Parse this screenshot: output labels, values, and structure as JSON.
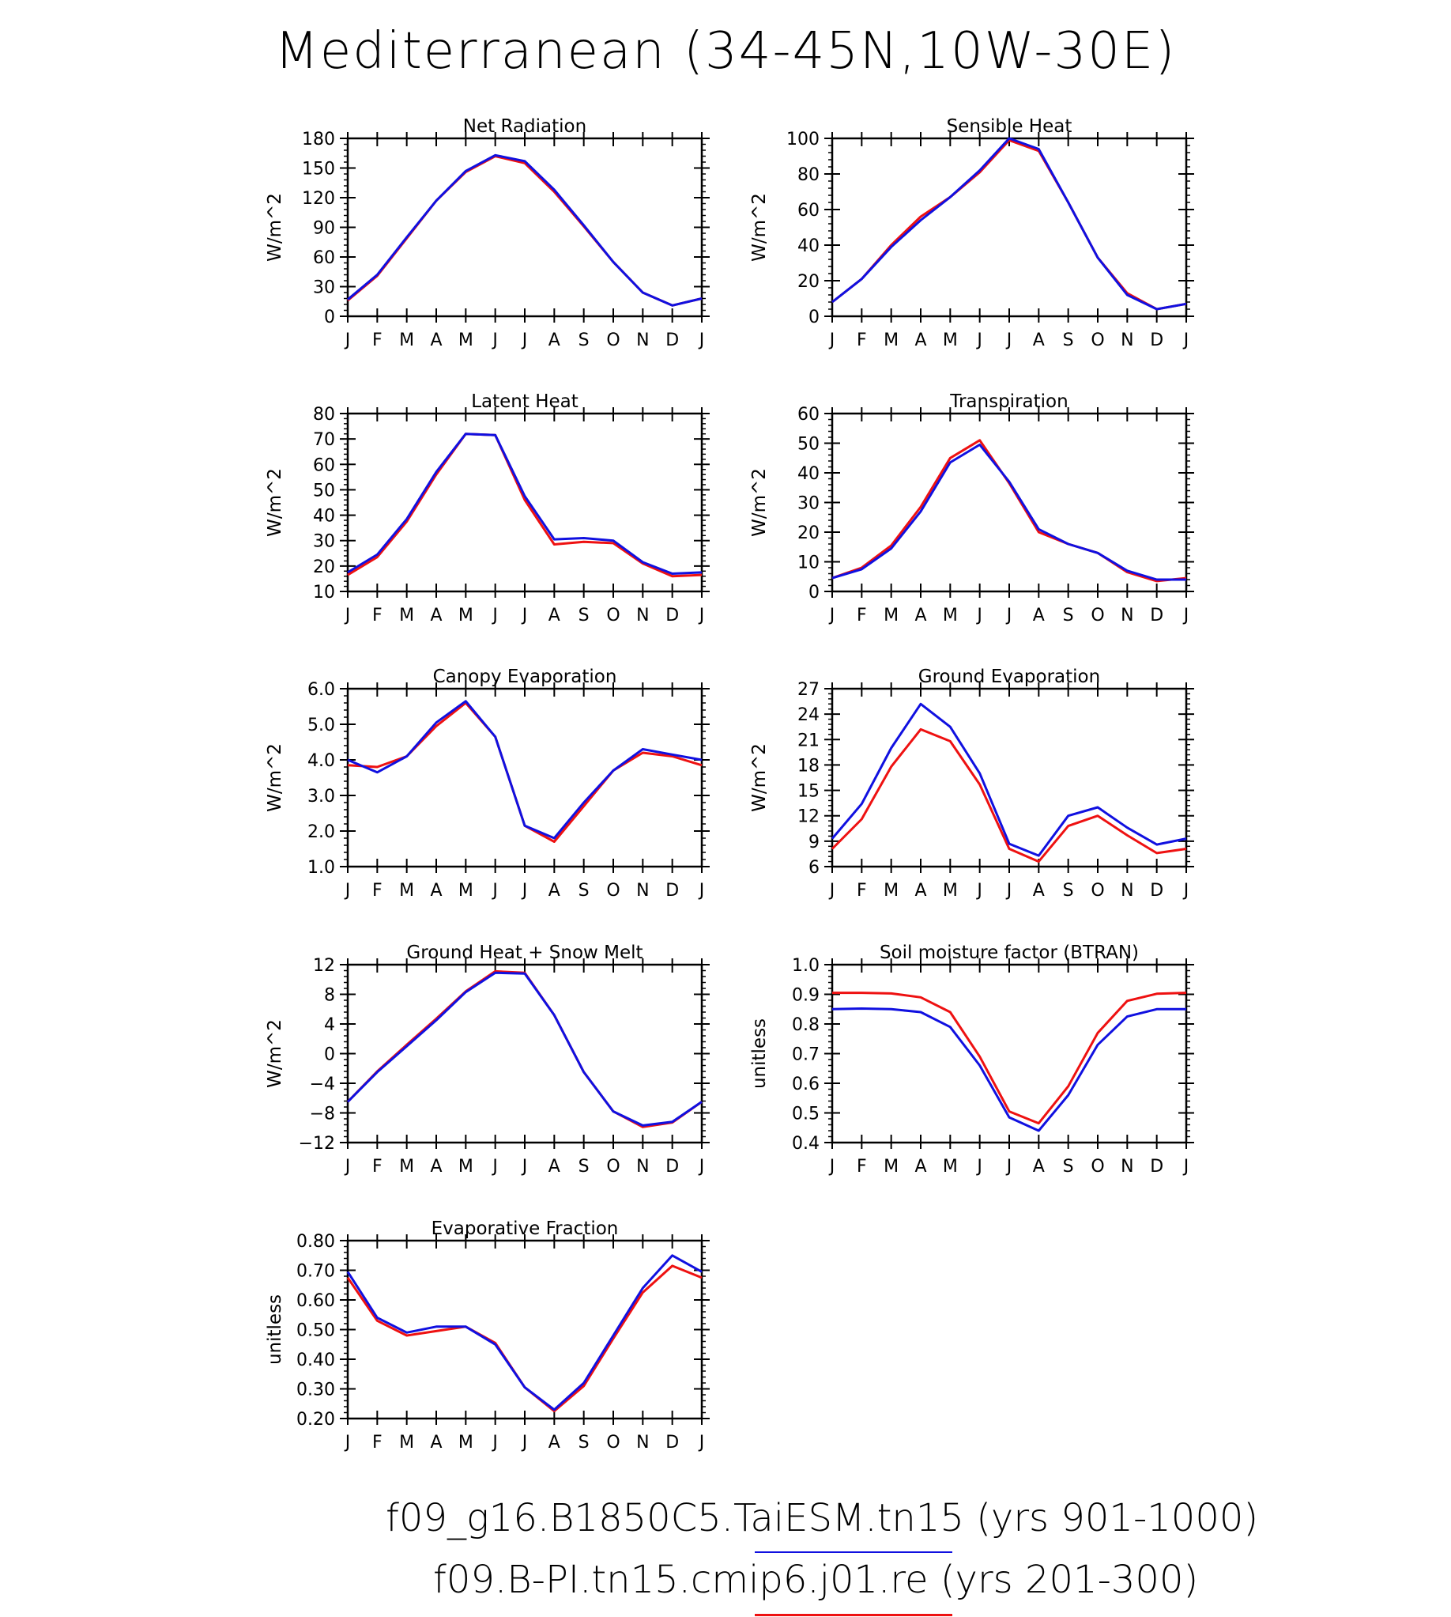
{
  "title": "Mediterranean (34-45N,10W-30E)",
  "months": [
    "J",
    "F",
    "M",
    "A",
    "M",
    "J",
    "J",
    "A",
    "S",
    "O",
    "N",
    "D",
    "J"
  ],
  "colors": {
    "series_a": "#1010e0",
    "series_b": "#ee1111"
  },
  "legend": [
    {
      "text": "f09_g16.B1850C5.TaiESM.tn15 (yrs 901-1000)",
      "color": "#1010e0"
    },
    {
      "text": "f09.B-PI.tn15.cmip6.j01.re (yrs 201-300)",
      "color": "#ee1111"
    }
  ],
  "chart_data": [
    {
      "type": "line",
      "title": "Net Radiation",
      "ylabel": "W/m^2",
      "ylim": [
        0,
        180
      ],
      "yticks": [
        "0",
        "30",
        "60",
        "90",
        "120",
        "150",
        "180"
      ],
      "series": [
        {
          "values": [
            17,
            42,
            80,
            117,
            147,
            163,
            157,
            128,
            92,
            55,
            24,
            11,
            18
          ]
        },
        {
          "values": [
            16,
            41,
            79,
            117,
            146,
            162,
            155,
            126,
            91,
            55,
            24,
            11,
            18
          ]
        }
      ]
    },
    {
      "type": "line",
      "title": "Sensible Heat",
      "ylabel": "W/m^2",
      "ylim": [
        0,
        100
      ],
      "yticks": [
        "0",
        "20",
        "40",
        "60",
        "80",
        "100"
      ],
      "series": [
        {
          "values": [
            8,
            21,
            39,
            54,
            67,
            82,
            100,
            94,
            64,
            33,
            12,
            4,
            7
          ]
        },
        {
          "values": [
            8,
            21,
            40,
            56,
            67,
            81,
            99,
            93,
            64,
            33,
            13,
            4,
            7
          ]
        }
      ]
    },
    {
      "type": "line",
      "title": "Latent Heat",
      "ylabel": "W/m^2",
      "ylim": [
        10,
        80
      ],
      "yticks": [
        "10",
        "20",
        "30",
        "40",
        "50",
        "60",
        "70",
        "80"
      ],
      "series": [
        {
          "values": [
            17.5,
            24.5,
            38.5,
            57,
            72,
            71.5,
            47.5,
            30.5,
            31,
            30,
            21.5,
            17,
            17.5
          ]
        },
        {
          "values": [
            16.5,
            23.5,
            37.5,
            56,
            72,
            71.5,
            46,
            28.5,
            29.5,
            29,
            21,
            16,
            16.5
          ]
        }
      ]
    },
    {
      "type": "line",
      "title": "Transpiration",
      "ylabel": "W/m^2",
      "ylim": [
        0,
        60
      ],
      "yticks": [
        "0",
        "10",
        "20",
        "30",
        "40",
        "50",
        "60"
      ],
      "series": [
        {
          "values": [
            4.5,
            7.5,
            14.5,
            27,
            43.5,
            49.5,
            37,
            21,
            16,
            13,
            7,
            4,
            4
          ]
        },
        {
          "values": [
            4.5,
            8,
            15.5,
            28.5,
            45,
            51,
            36.5,
            20,
            16,
            13,
            6.5,
            3.5,
            4.5
          ]
        }
      ]
    },
    {
      "type": "line",
      "title": "Canopy Evaporation",
      "ylabel": "W/m^2",
      "ylim": [
        1,
        6
      ],
      "yticks": [
        "1.0",
        "2.0",
        "3.0",
        "4.0",
        "5.0",
        "6.0"
      ],
      "series": [
        {
          "values": [
            4.0,
            3.65,
            4.1,
            5.05,
            5.65,
            4.65,
            2.15,
            1.8,
            2.8,
            3.7,
            4.3,
            4.15,
            4.0
          ]
        },
        {
          "values": [
            3.85,
            3.8,
            4.1,
            4.95,
            5.6,
            4.65,
            2.15,
            1.7,
            2.7,
            3.7,
            4.2,
            4.1,
            3.85
          ]
        }
      ]
    },
    {
      "type": "line",
      "title": "Ground Evaporation",
      "ylabel": "W/m^2",
      "ylim": [
        6,
        27
      ],
      "yticks": [
        "6",
        "9",
        "12",
        "15",
        "18",
        "21",
        "24",
        "27"
      ],
      "series": [
        {
          "values": [
            9.3,
            13.4,
            20,
            25.2,
            22.5,
            17,
            8.7,
            7.3,
            12,
            13,
            10.6,
            8.6,
            9.3
          ]
        },
        {
          "values": [
            8.1,
            11.6,
            17.8,
            22.2,
            20.8,
            15.7,
            8.1,
            6.6,
            10.8,
            12,
            9.7,
            7.6,
            8.1
          ]
        }
      ]
    },
    {
      "type": "line",
      "title": "Ground Heat + Snow Melt",
      "ylabel": "W/m^2",
      "ylim": [
        -12,
        12
      ],
      "yticks": [
        "-12",
        "-8",
        "-4",
        "0",
        "4",
        "8",
        "12"
      ],
      "series": [
        {
          "values": [
            -6.5,
            -2.5,
            1,
            4.5,
            8.3,
            10.9,
            10.8,
            5.2,
            -2.5,
            -7.8,
            -9.7,
            -9.2,
            -6.5
          ]
        },
        {
          "values": [
            -6.5,
            -2.4,
            1.2,
            4.7,
            8.4,
            11.1,
            10.9,
            5.2,
            -2.5,
            -7.8,
            -9.9,
            -9.3,
            -6.5
          ]
        }
      ]
    },
    {
      "type": "line",
      "title": "Soil moisture factor (BTRAN)",
      "ylabel": "unitless",
      "ylim": [
        0.4,
        1.0
      ],
      "yticks": [
        "0.4",
        "0.5",
        "0.6",
        "0.7",
        "0.8",
        "0.9",
        "1.0"
      ],
      "series": [
        {
          "values": [
            0.85,
            0.852,
            0.85,
            0.84,
            0.79,
            0.66,
            0.485,
            0.44,
            0.56,
            0.73,
            0.825,
            0.85,
            0.85
          ]
        },
        {
          "values": [
            0.905,
            0.905,
            0.903,
            0.89,
            0.84,
            0.69,
            0.505,
            0.465,
            0.59,
            0.77,
            0.878,
            0.902,
            0.905
          ]
        }
      ]
    },
    {
      "type": "line",
      "title": "Evaporative Fraction",
      "ylabel": "unitless",
      "ylim": [
        0.2,
        0.8
      ],
      "yticks": [
        "0.20",
        "0.30",
        "0.40",
        "0.50",
        "0.60",
        "0.70",
        "0.80"
      ],
      "series": [
        {
          "values": [
            0.695,
            0.54,
            0.49,
            0.51,
            0.51,
            0.45,
            0.305,
            0.23,
            0.32,
            0.48,
            0.64,
            0.75,
            0.695
          ]
        },
        {
          "values": [
            0.675,
            0.53,
            0.48,
            0.495,
            0.51,
            0.455,
            0.305,
            0.225,
            0.31,
            0.47,
            0.625,
            0.715,
            0.675
          ]
        }
      ]
    }
  ]
}
